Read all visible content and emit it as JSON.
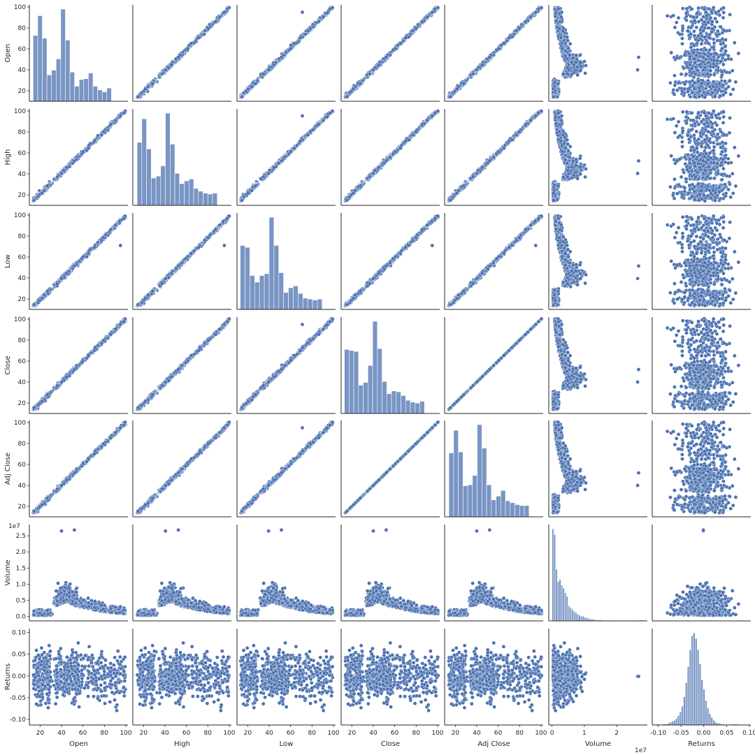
{
  "chart_data": {
    "type": "pairplot",
    "variables": [
      "Open",
      "High",
      "Low",
      "Close",
      "Adj Close",
      "Volume",
      "Returns"
    ],
    "colors": {
      "point": "#4c72b0",
      "point_edge": "#ffffff",
      "hist_fill": "#4c72b0",
      "hist_edge": "#ffffff",
      "axis": "#262626"
    },
    "axes": {
      "Open": {
        "ticks": [
          20,
          40,
          60,
          80,
          100
        ],
        "tick_labels": [
          "20",
          "40",
          "60",
          "80",
          "100"
        ],
        "range": [
          10,
          102
        ]
      },
      "High": {
        "ticks": [
          20,
          40,
          60,
          80,
          100
        ],
        "tick_labels": [
          "20",
          "40",
          "60",
          "80",
          "100"
        ],
        "range": [
          10,
          102
        ]
      },
      "Low": {
        "ticks": [
          20,
          40,
          60,
          80,
          100
        ],
        "tick_labels": [
          "20",
          "40",
          "60",
          "80",
          "100"
        ],
        "range": [
          10,
          102
        ]
      },
      "Close": {
        "ticks": [
          20,
          40,
          60,
          80,
          100
        ],
        "tick_labels": [
          "20",
          "40",
          "60",
          "80",
          "100"
        ],
        "range": [
          10,
          102
        ]
      },
      "Adj Close": {
        "ticks": [
          20,
          40,
          60,
          80,
          100
        ],
        "tick_labels": [
          "20",
          "40",
          "60",
          "80",
          "100"
        ],
        "range": [
          10,
          102
        ]
      },
      "Volume": {
        "x_ticks": [
          0,
          1,
          2
        ],
        "x_tick_labels": [
          "0",
          "1",
          "2"
        ],
        "x_range": [
          -0.1,
          2.95
        ],
        "y_ticks": [
          0,
          0.5,
          1.0,
          1.5,
          2.0,
          2.5
        ],
        "y_tick_labels": [
          "0.0",
          "0.5",
          "1.0",
          "1.5",
          "2.0",
          "2.5"
        ],
        "y_range": [
          -0.14,
          2.85
        ],
        "offset_label": "1e7"
      },
      "Returns": {
        "x_ticks": [
          -0.1,
          -0.05,
          0.0,
          0.05,
          0.1
        ],
        "x_tick_labels": [
          "-0.10",
          "-0.05",
          "0.00",
          "0.05",
          "0.10"
        ],
        "x_range": [
          -0.113,
          0.103
        ],
        "y_ticks": [
          -0.1,
          -0.05,
          0.0,
          0.05,
          0.1
        ],
        "y_tick_labels": [
          "-0.10",
          "-0.05",
          "0.00",
          "0.05",
          "0.10"
        ],
        "y_range": [
          -0.113,
          0.109
        ]
      }
    },
    "histograms": {
      "Open": {
        "bin_start": 13.5,
        "bin_width": 4.3,
        "counts": [
          70,
          91,
          67,
          28,
          33,
          45,
          98,
          65,
          31,
          16,
          23,
          24,
          30,
          16,
          12,
          10,
          14
        ]
      },
      "High": {
        "bin_start": 14.0,
        "bin_width": 4.4,
        "counts": [
          67,
          92,
          60,
          29,
          31,
          42,
          98,
          65,
          34,
          23,
          26,
          28,
          18,
          15,
          13,
          12,
          13
        ]
      },
      "Low": {
        "bin_start": 13.0,
        "bin_width": 4.5,
        "counts": [
          68,
          66,
          36,
          29,
          36,
          38,
          98,
          68,
          39,
          18,
          23,
          25,
          17,
          12,
          11,
          10,
          11
        ]
      },
      "Close": {
        "bin_start": 13.0,
        "bin_width": 4.4,
        "counts": [
          68,
          67,
          66,
          30,
          33,
          51,
          98,
          69,
          34,
          21,
          24,
          23,
          19,
          14,
          12,
          11,
          13
        ]
      },
      "Adj Close": {
        "bin_start": 14.0,
        "bin_width": 4.4,
        "counts": [
          68,
          92,
          69,
          33,
          34,
          44,
          98,
          73,
          34,
          18,
          22,
          28,
          17,
          15,
          13,
          12,
          12
        ]
      },
      "Volume": {
        "bin_start": 0.0,
        "bin_width": 0.055,
        "counts": [
          98,
          92,
          55,
          42,
          44,
          38,
          35,
          30,
          26,
          16,
          14,
          12,
          10,
          9,
          7,
          6,
          5,
          5,
          4,
          3,
          3,
          2,
          2,
          2,
          1,
          1,
          1,
          1,
          1,
          0,
          0,
          1,
          0,
          0,
          0,
          0,
          0,
          0,
          0,
          0,
          0,
          0,
          0,
          0,
          0,
          0,
          0,
          0,
          0,
          1,
          1
        ]
      },
      "Returns": {
        "bin_start": -0.105,
        "bin_width": 0.0043,
        "counts": [
          1,
          0,
          0,
          1,
          1,
          1,
          2,
          3,
          4,
          5,
          7,
          10,
          14,
          20,
          30,
          45,
          62,
          80,
          95,
          98,
          92,
          80,
          65,
          48,
          38,
          26,
          18,
          12,
          8,
          5,
          3,
          2,
          2,
          1,
          1,
          0,
          0,
          0,
          0,
          1,
          1,
          1
        ]
      }
    },
    "relationships": {
      "price_columns_near_identical": true,
      "price_range": [
        13,
        100
      ],
      "volume_peak_price": 45,
      "volume_range": [
        0,
        2.7
      ],
      "returns_range": [
        -0.105,
        0.1
      ],
      "outliers": {
        "open_vs_low": [
          95,
          71
        ],
        "volume_high": [
          [
            40,
            2.65
          ],
          [
            52,
            2.68
          ]
        ]
      }
    }
  }
}
